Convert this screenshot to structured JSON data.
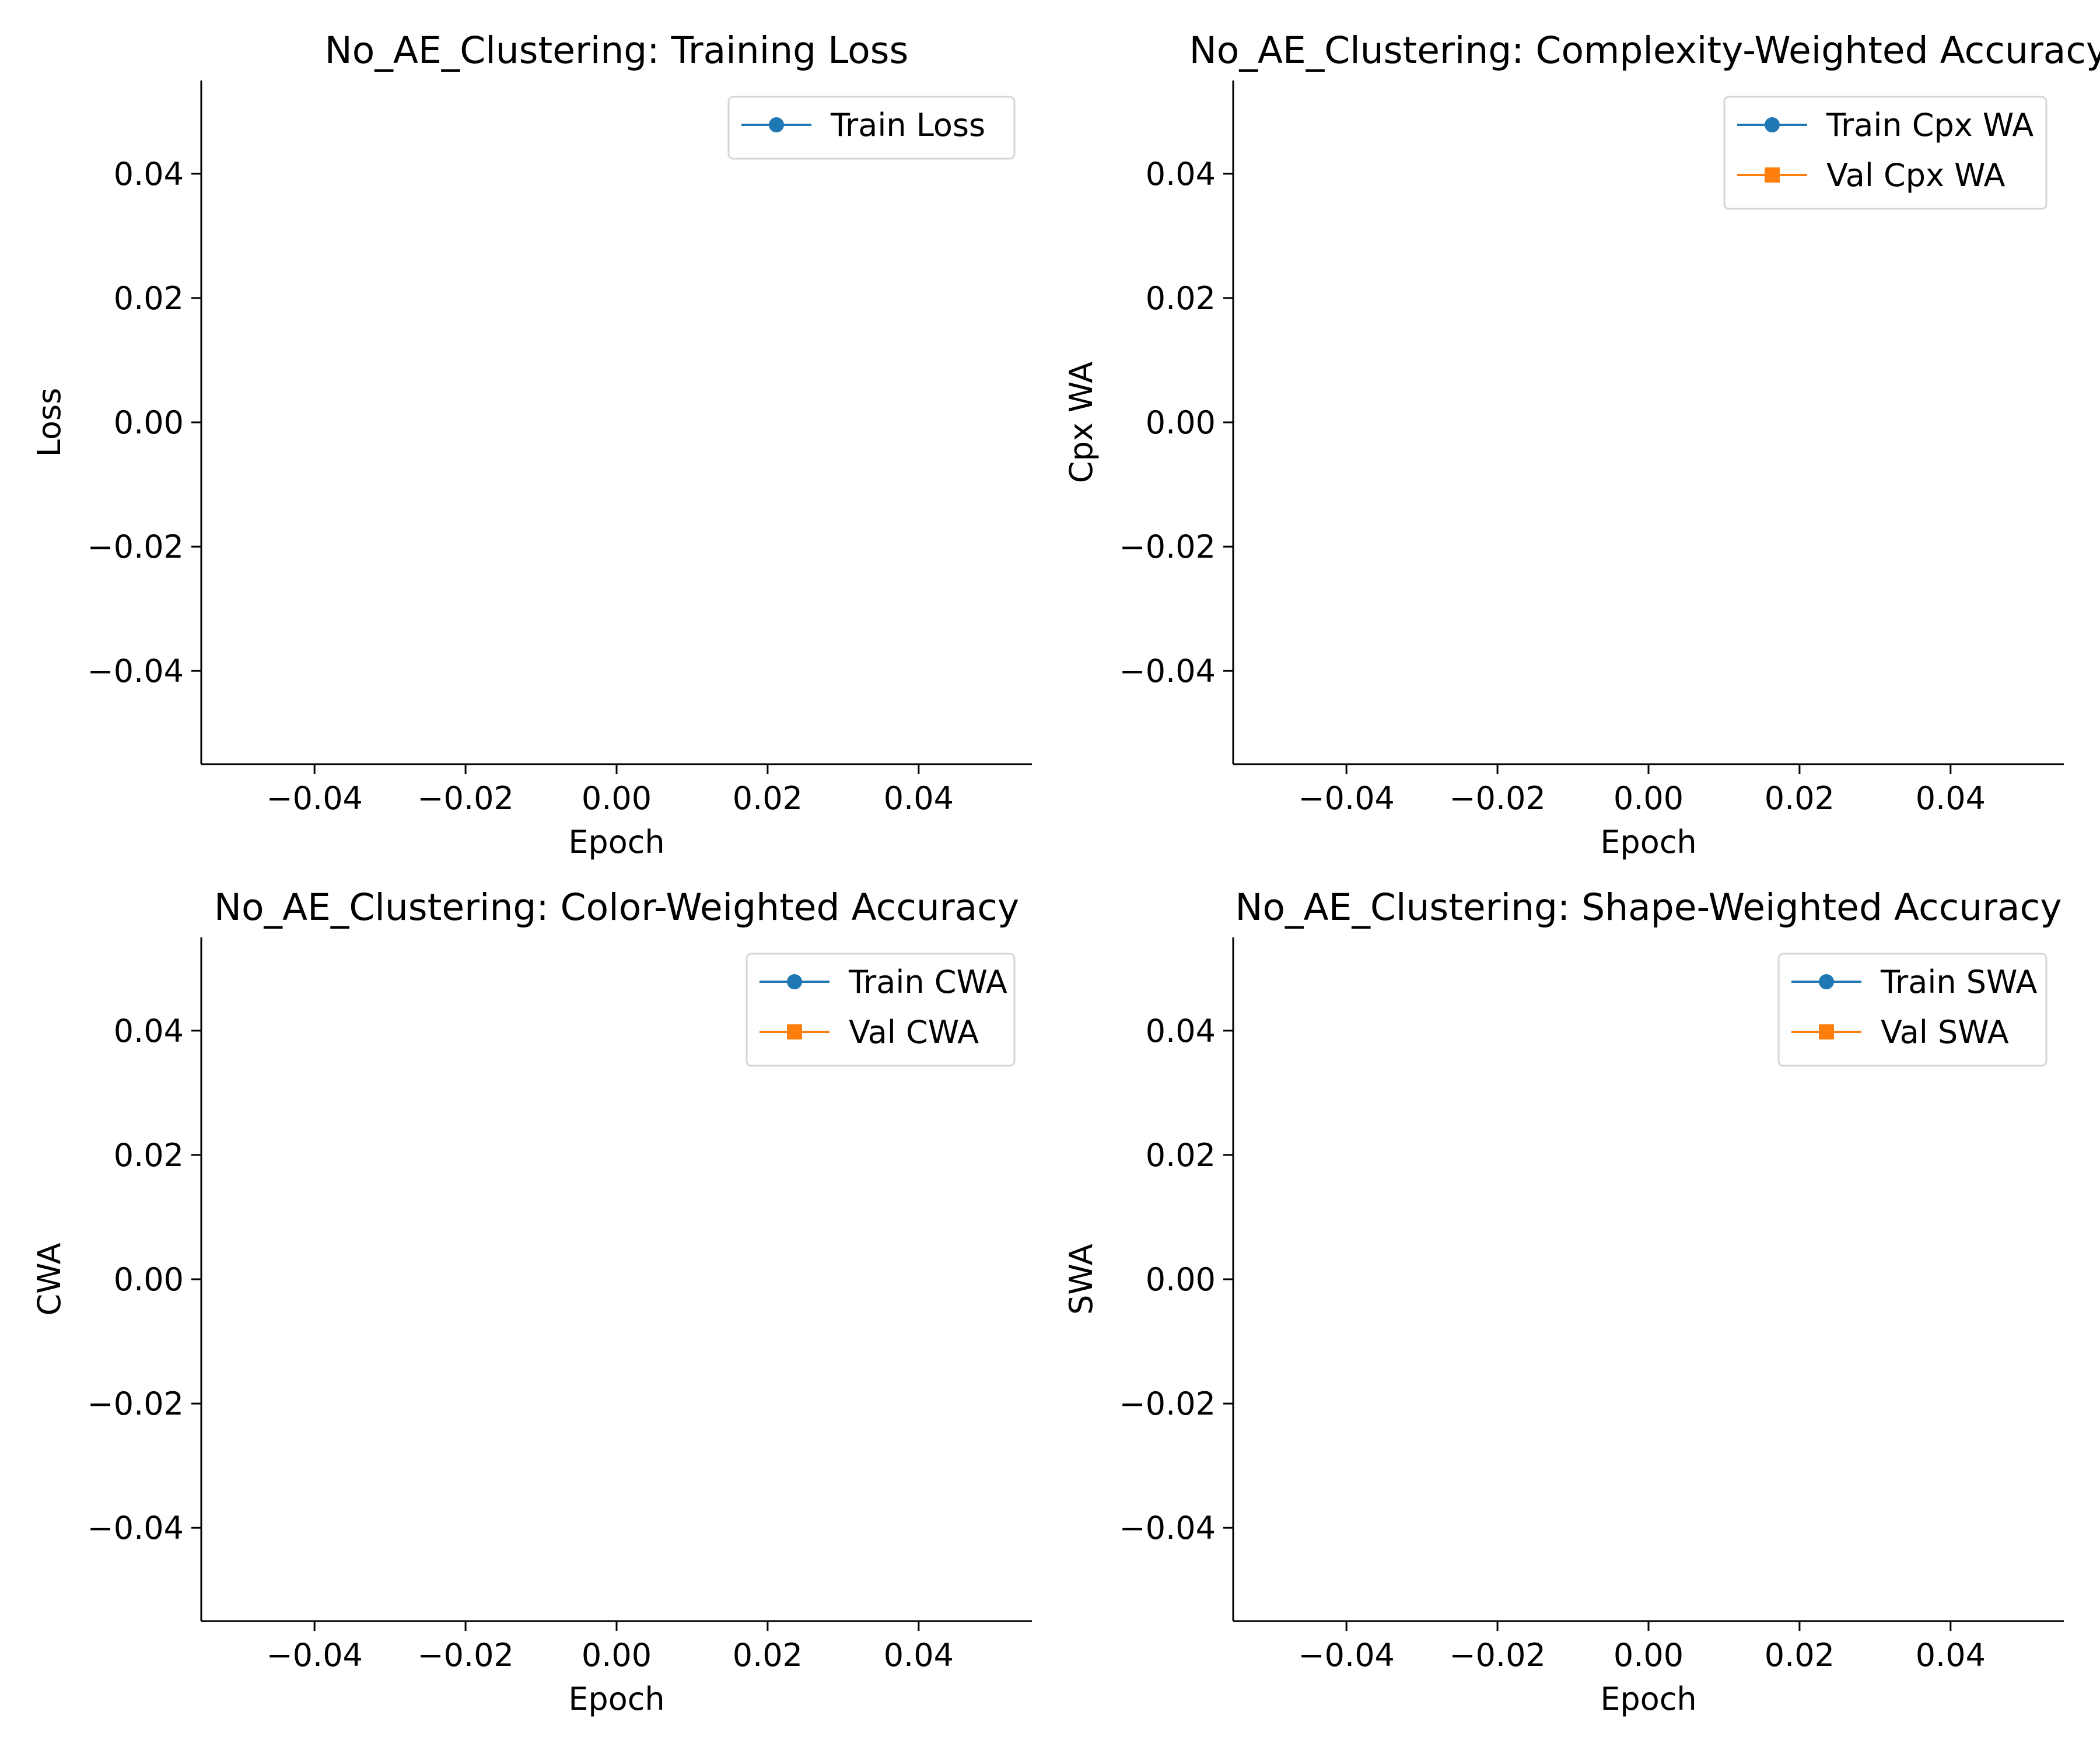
{
  "chart_data": [
    {
      "type": "line",
      "title": "No_AE_Clustering: Training Loss",
      "xlabel": "Epoch",
      "ylabel": "Loss",
      "xlim": [
        -0.055,
        0.055
      ],
      "ylim": [
        -0.055,
        0.055
      ],
      "xticks": [
        "−0.04",
        "−0.02",
        "0.00",
        "0.02",
        "0.04"
      ],
      "xtick_values": [
        -0.04,
        -0.02,
        0.0,
        0.02,
        0.04
      ],
      "yticks": [
        "−0.04",
        "−0.02",
        "0.00",
        "0.02",
        "0.04"
      ],
      "ytick_values": [
        -0.04,
        -0.02,
        0.0,
        0.02,
        0.04
      ],
      "grid": false,
      "legend_position": "top-right",
      "series": [
        {
          "name": "Train Loss",
          "color": "#1f77b4",
          "marker": "circle",
          "x": [],
          "values": []
        }
      ]
    },
    {
      "type": "line",
      "title": "No_AE_Clustering: Complexity-Weighted Accuracy",
      "xlabel": "Epoch",
      "ylabel": "Cpx WA",
      "xlim": [
        -0.055,
        0.055
      ],
      "ylim": [
        -0.055,
        0.055
      ],
      "xticks": [
        "−0.04",
        "−0.02",
        "0.00",
        "0.02",
        "0.04"
      ],
      "xtick_values": [
        -0.04,
        -0.02,
        0.0,
        0.02,
        0.04
      ],
      "yticks": [
        "−0.04",
        "−0.02",
        "0.00",
        "0.02",
        "0.04"
      ],
      "ytick_values": [
        -0.04,
        -0.02,
        0.0,
        0.02,
        0.04
      ],
      "grid": false,
      "legend_position": "top-right",
      "series": [
        {
          "name": "Train Cpx WA",
          "color": "#1f77b4",
          "marker": "circle",
          "x": [],
          "values": []
        },
        {
          "name": "Val Cpx WA",
          "color": "#ff7f0e",
          "marker": "square",
          "x": [],
          "values": []
        }
      ]
    },
    {
      "type": "line",
      "title": "No_AE_Clustering: Color-Weighted Accuracy",
      "xlabel": "Epoch",
      "ylabel": "CWA",
      "xlim": [
        -0.055,
        0.055
      ],
      "ylim": [
        -0.055,
        0.055
      ],
      "xticks": [
        "−0.04",
        "−0.02",
        "0.00",
        "0.02",
        "0.04"
      ],
      "xtick_values": [
        -0.04,
        -0.02,
        0.0,
        0.02,
        0.04
      ],
      "yticks": [
        "−0.04",
        "−0.02",
        "0.00",
        "0.02",
        "0.04"
      ],
      "ytick_values": [
        -0.04,
        -0.02,
        0.0,
        0.02,
        0.04
      ],
      "grid": false,
      "legend_position": "top-right",
      "series": [
        {
          "name": "Train CWA",
          "color": "#1f77b4",
          "marker": "circle",
          "x": [],
          "values": []
        },
        {
          "name": "Val CWA",
          "color": "#ff7f0e",
          "marker": "square",
          "x": [],
          "values": []
        }
      ]
    },
    {
      "type": "line",
      "title": "No_AE_Clustering: Shape-Weighted Accuracy",
      "xlabel": "Epoch",
      "ylabel": "SWA",
      "xlim": [
        -0.055,
        0.055
      ],
      "ylim": [
        -0.055,
        0.055
      ],
      "xticks": [
        "−0.04",
        "−0.02",
        "0.00",
        "0.02",
        "0.04"
      ],
      "xtick_values": [
        -0.04,
        -0.02,
        0.0,
        0.02,
        0.04
      ],
      "yticks": [
        "−0.04",
        "−0.02",
        "0.00",
        "0.02",
        "0.04"
      ],
      "ytick_values": [
        -0.04,
        -0.02,
        0.0,
        0.02,
        0.04
      ],
      "grid": false,
      "legend_position": "top-right",
      "series": [
        {
          "name": "Train SWA",
          "color": "#1f77b4",
          "marker": "circle",
          "x": [],
          "values": []
        },
        {
          "name": "Val SWA",
          "color": "#ff7f0e",
          "marker": "square",
          "x": [],
          "values": []
        }
      ]
    }
  ]
}
